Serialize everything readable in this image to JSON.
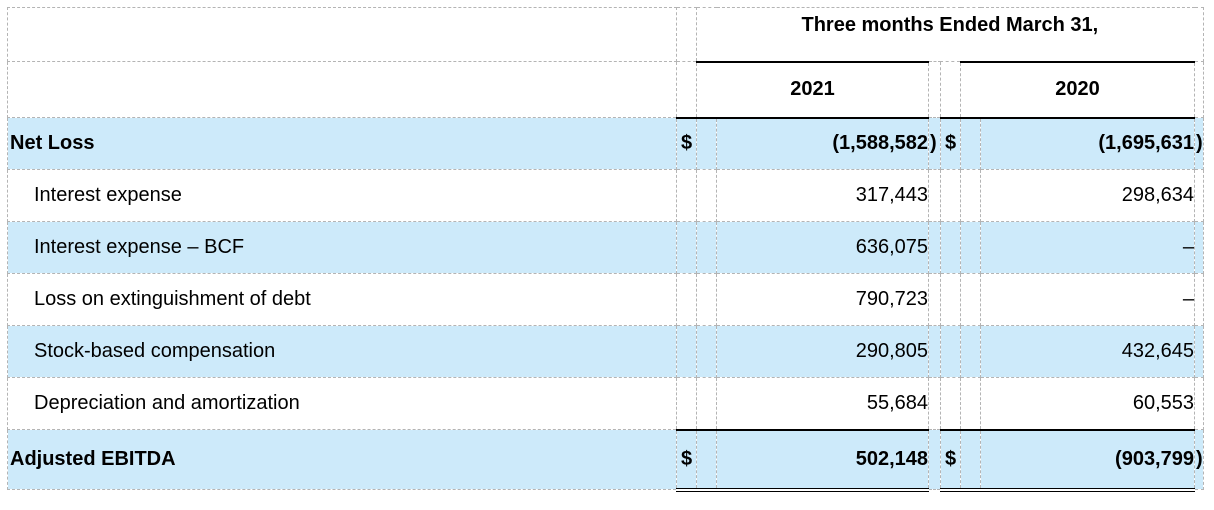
{
  "header": {
    "period_title": "Three months Ended March 31,",
    "year_2021": "2021",
    "year_2020": "2020"
  },
  "currency_symbol": "$",
  "rows": [
    {
      "label": "Net Loss",
      "v2021": "(1,588,582",
      "p2021": ")",
      "v2020": "(1,695,631",
      "p2020": ")"
    },
    {
      "label": "Interest expense",
      "v2021": "317,443",
      "p2021": "",
      "v2020": "298,634",
      "p2020": ""
    },
    {
      "label": "Interest expense – BCF",
      "v2021": "636,075",
      "p2021": "",
      "v2020": "–",
      "p2020": ""
    },
    {
      "label": "Loss on extinguishment of debt",
      "v2021": "790,723",
      "p2021": "",
      "v2020": "–",
      "p2020": ""
    },
    {
      "label": "Stock-based compensation",
      "v2021": "290,805",
      "p2021": "",
      "v2020": "432,645",
      "p2020": ""
    },
    {
      "label": "Depreciation and amortization",
      "v2021": "55,684",
      "p2021": "",
      "v2020": "60,553",
      "p2020": ""
    },
    {
      "label": "Adjusted EBITDA",
      "v2021": "502,148",
      "p2021": "",
      "v2020": "(903,799",
      "p2020": ")"
    }
  ]
}
